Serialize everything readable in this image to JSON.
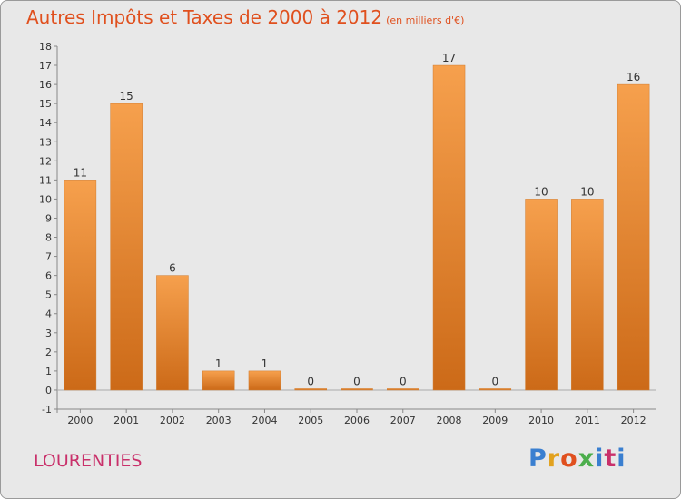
{
  "title": "Autres Impôts et Taxes de 2000 à 2012",
  "subtitle": "(en milliers d'€)",
  "place": "LOURENTIES",
  "logo": "Proxiti",
  "colors": {
    "bar_top": "#f6a04d",
    "bar_bottom": "#cc6a18",
    "title": "#e0501e",
    "place": "#c9306a",
    "axis_label": "#333333"
  },
  "chart_data": {
    "type": "bar",
    "title": "Autres Impôts et Taxes de 2000 à 2012",
    "subtitle": "(en milliers d'€)",
    "categories": [
      "2000",
      "2001",
      "2002",
      "2003",
      "2004",
      "2005",
      "2006",
      "2007",
      "2008",
      "2009",
      "2010",
      "2011",
      "2012"
    ],
    "values": [
      11,
      15,
      6,
      1,
      1,
      0,
      0,
      0,
      17,
      0,
      10,
      10,
      16
    ],
    "ylim": [
      -1,
      18
    ],
    "yticks": [
      -1,
      0,
      1,
      2,
      3,
      4,
      5,
      6,
      7,
      8,
      9,
      10,
      11,
      12,
      13,
      14,
      15,
      16,
      17,
      18
    ],
    "grid": false,
    "data_labels": true
  }
}
